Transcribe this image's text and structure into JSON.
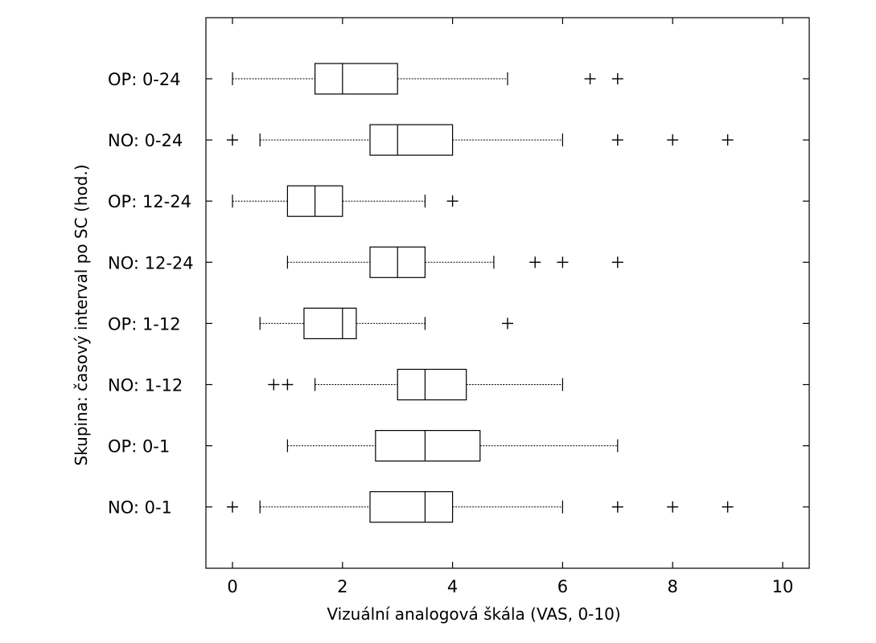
{
  "chart_data": {
    "type": "boxplot",
    "orientation": "horizontal",
    "xlabel": "Vizuální analogová škála (VAS, 0-10)",
    "ylabel": "Skupina: časový interval po SC (hod.)",
    "xlim": [
      -0.45,
      10.5
    ],
    "xticks": [
      0,
      2,
      4,
      6,
      8,
      10
    ],
    "grid": false,
    "categories": [
      "OP: 0-24",
      "NO: 0-24",
      "OP: 12-24",
      "NO: 12-24",
      "OP: 1-12",
      "NO: 1-12",
      "OP: 0-1",
      "NO: 0-1"
    ],
    "boxes": [
      {
        "label": "OP: 0-24",
        "whisker_low": 0,
        "q1": 1.5,
        "median": 2,
        "q3": 3,
        "whisker_high": 5,
        "outliers": [
          6.5,
          7
        ]
      },
      {
        "label": "NO: 0-24",
        "whisker_low": 0.5,
        "q1": 2.5,
        "median": 3,
        "q3": 4,
        "whisker_high": 6,
        "outliers": [
          0,
          7,
          8,
          9
        ]
      },
      {
        "label": "OP: 12-24",
        "whisker_low": 0,
        "q1": 1,
        "median": 1.5,
        "q3": 2,
        "whisker_high": 3.5,
        "outliers": [
          4
        ]
      },
      {
        "label": "NO: 12-24",
        "whisker_low": 1,
        "q1": 2.5,
        "median": 3,
        "q3": 3.5,
        "whisker_high": 4.75,
        "outliers": [
          5.5,
          6,
          7
        ]
      },
      {
        "label": "OP: 1-12",
        "whisker_low": 0.5,
        "q1": 1.3,
        "median": 2,
        "q3": 2.25,
        "whisker_high": 3.5,
        "outliers": [
          5
        ]
      },
      {
        "label": "NO: 1-12",
        "whisker_low": 1.5,
        "q1": 3,
        "median": 3.5,
        "q3": 4.25,
        "whisker_high": 6,
        "outliers": [
          0.75,
          1
        ]
      },
      {
        "label": "OP: 0-1",
        "whisker_low": 1,
        "q1": 2.6,
        "median": 3.5,
        "q3": 4.5,
        "whisker_high": 7,
        "outliers": []
      },
      {
        "label": "NO: 0-1",
        "whisker_low": 0.5,
        "q1": 2.5,
        "median": 3.5,
        "q3": 4,
        "whisker_high": 6,
        "outliers": [
          0,
          7,
          8,
          9
        ]
      }
    ]
  }
}
